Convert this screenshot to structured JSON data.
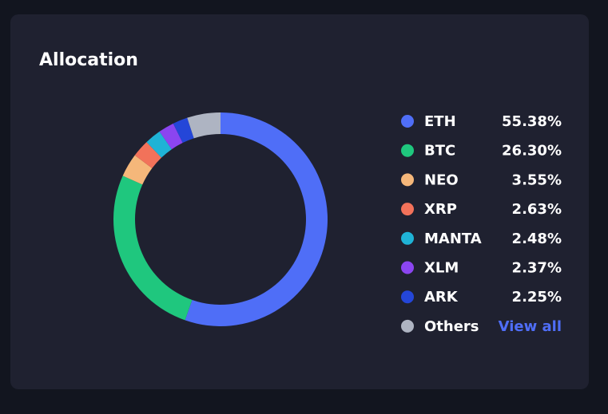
{
  "chart_data": {
    "type": "pie",
    "title": "Allocation",
    "categories": [
      "ETH",
      "BTC",
      "NEO",
      "XRP",
      "MANTA",
      "XLM",
      "ARK",
      "Others"
    ],
    "values": [
      55.38,
      26.3,
      3.55,
      2.63,
      2.48,
      2.37,
      2.25,
      5.04
    ],
    "value_labels": [
      "55.38%",
      "26.30%",
      "3.55%",
      "2.63%",
      "2.48%",
      "2.37%",
      "2.25%",
      null
    ],
    "colors": [
      "#4f6ef7",
      "#1fc77e",
      "#f5b77a",
      "#f2725a",
      "#1fb3d6",
      "#8b45f0",
      "#2446d8",
      "#aeb4c2"
    ],
    "view_all_label": "View all"
  }
}
